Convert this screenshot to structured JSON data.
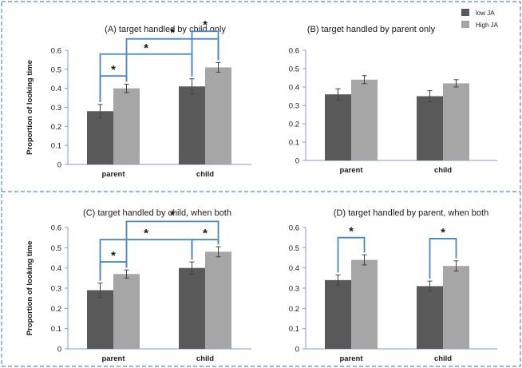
{
  "legend": {
    "items": [
      {
        "label": "low JA",
        "color": "#595959"
      },
      {
        "label": "High JA",
        "color": "#a6a6a6"
      }
    ],
    "placement": "top-right of panel B"
  },
  "colors": {
    "frame_dash": "#5b8ac6",
    "bracket": "#4a86c8",
    "axis": "#7f9ccc",
    "error_bar": "#404040"
  },
  "significance_marker": "*",
  "chart_data": [
    {
      "panel": "A",
      "type": "bar",
      "title": "(A) target handled by child only",
      "ylabel": "Proportion of looking time",
      "xlabel": "",
      "categories": [
        "parent",
        "child"
      ],
      "series": [
        {
          "name": "low JA",
          "values": [
            0.28,
            0.41
          ],
          "errors": [
            0.035,
            0.04
          ]
        },
        {
          "name": "High JA",
          "values": [
            0.4,
            0.51
          ],
          "errors": [
            0.022,
            0.025
          ]
        }
      ],
      "ylim": [
        0,
        0.6
      ],
      "yticks": [
        "0",
        "0.1",
        "0.2",
        "0.3",
        "0.4",
        "0.5",
        "0.6"
      ],
      "significance": [
        {
          "from": [
            "parent",
            "low JA"
          ],
          "to": [
            "parent",
            "High JA"
          ]
        },
        {
          "from": [
            "parent",
            "low JA"
          ],
          "to": [
            "child",
            "low JA"
          ]
        },
        {
          "from": [
            "parent",
            "High JA"
          ],
          "to": [
            "child",
            "High JA"
          ]
        },
        {
          "from": [
            "child",
            "low JA"
          ],
          "to": [
            "child",
            "High JA"
          ]
        }
      ]
    },
    {
      "panel": "B",
      "type": "bar",
      "title": "(B) target handled by parent only",
      "ylabel": "",
      "xlabel": "",
      "categories": [
        "parent",
        "child"
      ],
      "series": [
        {
          "name": "low JA",
          "values": [
            0.36,
            0.35
          ],
          "errors": [
            0.03,
            0.03
          ]
        },
        {
          "name": "High JA",
          "values": [
            0.44,
            0.42
          ],
          "errors": [
            0.022,
            0.02
          ]
        }
      ],
      "ylim": [
        0,
        0.6
      ],
      "yticks": [
        "0",
        "0.1",
        "0.2",
        "0.3",
        "0.4",
        "0.5",
        "0.6"
      ],
      "significance": []
    },
    {
      "panel": "C",
      "type": "bar",
      "title": "(C) target handled by child, when both",
      "ylabel": "Proportion of looking time",
      "xlabel": "",
      "categories": [
        "parent",
        "child"
      ],
      "series": [
        {
          "name": "low JA",
          "values": [
            0.29,
            0.4
          ],
          "errors": [
            0.035,
            0.03
          ]
        },
        {
          "name": "High JA",
          "values": [
            0.37,
            0.48
          ],
          "errors": [
            0.02,
            0.025
          ]
        }
      ],
      "ylim": [
        0,
        0.6
      ],
      "yticks": [
        "0",
        "0.1",
        "0.2",
        "0.3",
        "0.4",
        "0.5",
        "0.6"
      ],
      "significance": [
        {
          "from": [
            "parent",
            "low JA"
          ],
          "to": [
            "parent",
            "High JA"
          ]
        },
        {
          "from": [
            "parent",
            "low JA"
          ],
          "to": [
            "child",
            "low JA"
          ]
        },
        {
          "from": [
            "parent",
            "High JA"
          ],
          "to": [
            "child",
            "High JA"
          ]
        },
        {
          "from": [
            "child",
            "low JA"
          ],
          "to": [
            "child",
            "High JA"
          ]
        }
      ]
    },
    {
      "panel": "D",
      "type": "bar",
      "title": "(D) target handled by parent, when both",
      "ylabel": "",
      "xlabel": "",
      "categories": [
        "parent",
        "child"
      ],
      "series": [
        {
          "name": "low JA",
          "values": [
            0.34,
            0.31
          ],
          "errors": [
            0.025,
            0.025
          ]
        },
        {
          "name": "High JA",
          "values": [
            0.44,
            0.41
          ],
          "errors": [
            0.025,
            0.025
          ]
        }
      ],
      "ylim": [
        0,
        0.6
      ],
      "yticks": [
        "0",
        "0.1",
        "0.2",
        "0.3",
        "0.4",
        "0.5",
        "0.6"
      ],
      "significance": [
        {
          "from": [
            "parent",
            "low JA"
          ],
          "to": [
            "parent",
            "High JA"
          ]
        },
        {
          "from": [
            "child",
            "low JA"
          ],
          "to": [
            "child",
            "High JA"
          ]
        }
      ]
    }
  ]
}
